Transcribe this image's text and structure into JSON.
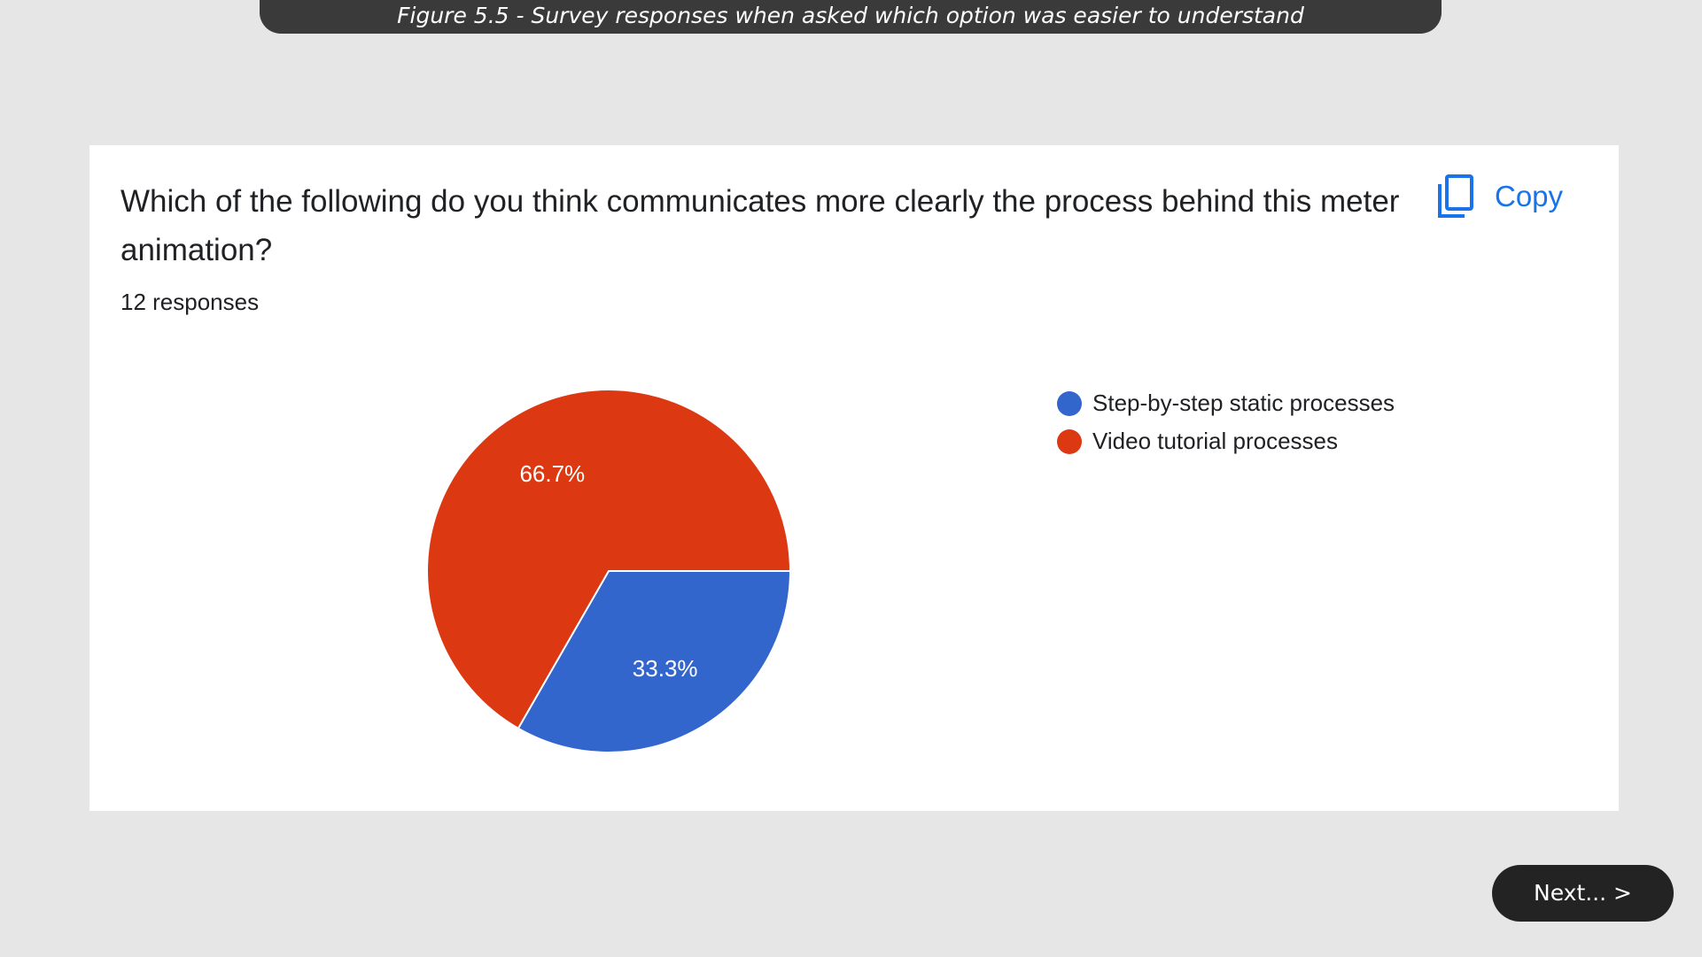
{
  "figure_caption": "Figure 5.5 - Survey responses when asked which option was easier to understand",
  "card": {
    "question": "Which of the following do you think communicates more clearly the process behind this meter animation?",
    "responses_text": "12 responses",
    "copy_label": "Copy",
    "copy_icon": "copy-icon"
  },
  "chart_data": {
    "type": "pie",
    "title": "",
    "categories": [
      "Step-by-step static processes",
      "Video tutorial processes"
    ],
    "values": [
      33.3,
      66.7
    ],
    "labels": [
      "33.3%",
      "66.7%"
    ],
    "colors": [
      "#3366cc",
      "#dc3912"
    ],
    "start_angle_deg": 0,
    "direction": "clockwise",
    "legend_position": "right"
  },
  "nav": {
    "next_label": "Next... >"
  },
  "colors": {
    "background": "#e6e6e6",
    "caption_bar": "#3a3a3a",
    "card": "#ffffff",
    "accent": "#1a73e8",
    "next_button": "#232323"
  }
}
